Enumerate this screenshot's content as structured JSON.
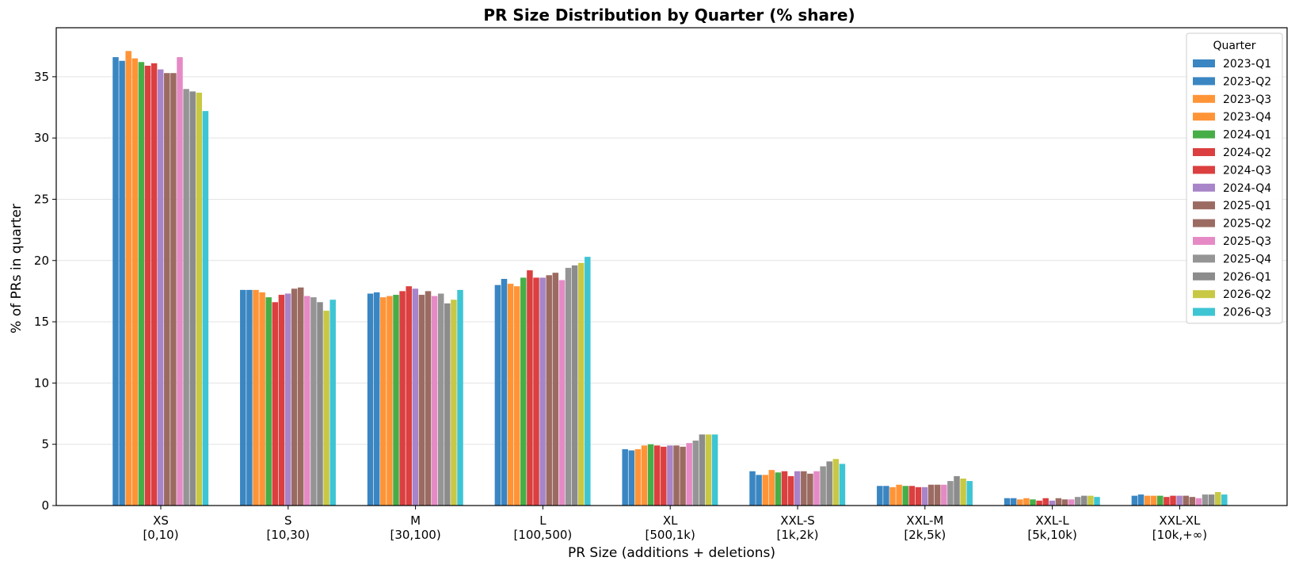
{
  "chart_data": {
    "type": "bar",
    "title": "PR Size Distribution by Quarter (% share)",
    "xlabel": "PR Size (additions + deletions)",
    "ylabel": "% of PRs in quarter",
    "ylim": [
      0,
      39
    ],
    "yticks": [
      0,
      5,
      10,
      15,
      20,
      25,
      30,
      35
    ],
    "grid": "horizontal",
    "legend_title": "Quarter",
    "legend_position": "top-right",
    "categories": [
      "XS",
      "S",
      "M",
      "L",
      "XL",
      "XXL-S",
      "XXL-M",
      "XXL-L",
      "XXL-XL"
    ],
    "category_ranges": [
      "[0,10)",
      "[10,30)",
      "[30,100)",
      "[100,500)",
      "[500,1k)",
      "[1k,2k)",
      "[2k,5k)",
      "[5k,10k)",
      "[10k,+∞)"
    ],
    "series": [
      {
        "name": "2023-Q1",
        "color": "#3a86c2",
        "values": [
          36.6,
          17.6,
          17.3,
          18.0,
          4.6,
          2.8,
          1.6,
          0.6,
          0.8
        ]
      },
      {
        "name": "2023-Q2",
        "color": "#3a86c2",
        "values": [
          36.3,
          17.6,
          17.4,
          18.5,
          4.5,
          2.5,
          1.6,
          0.6,
          0.9
        ]
      },
      {
        "name": "2023-Q3",
        "color": "#ff9437",
        "values": [
          37.1,
          17.6,
          17.0,
          18.1,
          4.6,
          2.5,
          1.5,
          0.5,
          0.8
        ]
      },
      {
        "name": "2023-Q4",
        "color": "#ff9437",
        "values": [
          36.5,
          17.4,
          17.1,
          17.9,
          4.9,
          2.9,
          1.7,
          0.6,
          0.8
        ]
      },
      {
        "name": "2024-Q1",
        "color": "#47ae47",
        "values": [
          36.2,
          17.0,
          17.2,
          18.6,
          5.0,
          2.7,
          1.6,
          0.5,
          0.8
        ]
      },
      {
        "name": "2024-Q2",
        "color": "#db3f3f",
        "values": [
          35.9,
          16.6,
          17.5,
          19.2,
          4.9,
          2.8,
          1.6,
          0.4,
          0.7
        ]
      },
      {
        "name": "2024-Q3",
        "color": "#db3f3f",
        "values": [
          36.1,
          17.2,
          17.9,
          18.6,
          4.8,
          2.4,
          1.5,
          0.6,
          0.8
        ]
      },
      {
        "name": "2024-Q4",
        "color": "#a884c8",
        "values": [
          35.6,
          17.3,
          17.7,
          18.6,
          4.9,
          2.8,
          1.5,
          0.4,
          0.8
        ]
      },
      {
        "name": "2025-Q1",
        "color": "#9b6b62",
        "values": [
          35.3,
          17.7,
          17.2,
          18.8,
          4.9,
          2.8,
          1.7,
          0.6,
          0.8
        ]
      },
      {
        "name": "2025-Q2",
        "color": "#9b6b62",
        "values": [
          35.3,
          17.8,
          17.5,
          19.0,
          4.8,
          2.6,
          1.7,
          0.5,
          0.7
        ]
      },
      {
        "name": "2025-Q3",
        "color": "#e68ac6",
        "values": [
          36.6,
          17.1,
          17.1,
          18.4,
          5.1,
          2.8,
          1.7,
          0.5,
          0.6
        ]
      },
      {
        "name": "2025-Q4",
        "color": "#959595",
        "values": [
          34.0,
          17.0,
          17.3,
          19.4,
          5.3,
          3.2,
          2.0,
          0.7,
          0.9
        ]
      },
      {
        "name": "2026-Q1",
        "color": "#8c8c8c",
        "values": [
          33.8,
          16.6,
          16.5,
          19.6,
          5.8,
          3.6,
          2.4,
          0.8,
          0.9
        ]
      },
      {
        "name": "2026-Q2",
        "color": "#c8c845",
        "values": [
          33.7,
          15.9,
          16.8,
          19.8,
          5.8,
          3.8,
          2.2,
          0.8,
          1.1
        ]
      },
      {
        "name": "2026-Q3",
        "color": "#3ec5d4",
        "values": [
          32.2,
          16.8,
          17.6,
          20.3,
          5.8,
          3.4,
          2.0,
          0.7,
          0.9
        ]
      }
    ]
  }
}
